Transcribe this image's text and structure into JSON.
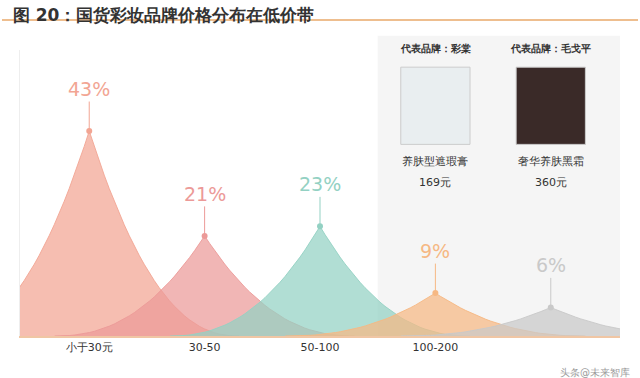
{
  "chart_data": {
    "type": "area",
    "title": "图 20：国货彩妆品牌价格分布在低价带",
    "categories": [
      "小于30元",
      "30-50",
      "50-100",
      "100-200",
      null
    ],
    "values": [
      43,
      21,
      23,
      9,
      6
    ],
    "value_labels": [
      "43%",
      "21%",
      "23%",
      "9%",
      "6%"
    ],
    "colors": [
      "#f2a593",
      "#ec9a98",
      "#93d1c3",
      "#f6b883",
      "#c9c9c9"
    ],
    "data_labels": true,
    "tick_labels": "x",
    "ylim": [
      0,
      60
    ],
    "annotations": [
      {
        "category": 3,
        "brand": "代表品牌：彩棠",
        "product": "养肤型遮瑕膏",
        "price": "169元"
      },
      {
        "category": 4,
        "brand": "代表品牌：毛戈平",
        "product": "奢华养肤黑霜",
        "price": "360元"
      }
    ],
    "source": "头条@未来智库"
  }
}
